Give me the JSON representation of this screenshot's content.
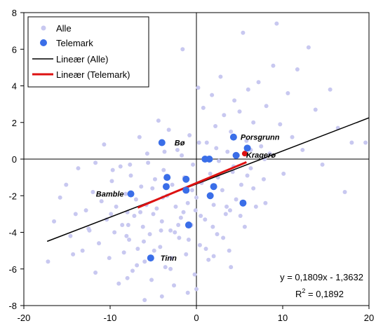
{
  "chart_data": {
    "type": "scatter",
    "xlim": [
      -20,
      20
    ],
    "ylim": [
      -8,
      8
    ],
    "x_ticks": [
      -20,
      -10,
      0,
      10,
      20
    ],
    "y_ticks": [
      -8,
      -6,
      -4,
      -2,
      0,
      2,
      4,
      6,
      8
    ],
    "x_tick_labels": [
      "-20",
      "-10",
      "0",
      "10",
      "20"
    ],
    "y_tick_labels": [
      "-8",
      "-6",
      "-4",
      "-2",
      "0",
      "2",
      "4",
      "6",
      "8"
    ],
    "grid": false,
    "legend_position": "top-left",
    "series": [
      {
        "name": "Alle",
        "color": "#c8c8f0",
        "points": [
          [
            -17.2,
            -5.6
          ],
          [
            -16.5,
            -3.4
          ],
          [
            -15.8,
            -2.1
          ],
          [
            -15.1,
            -1.4
          ],
          [
            -14.6,
            -4.2
          ],
          [
            -14.0,
            -3.0
          ],
          [
            -13.7,
            -0.5
          ],
          [
            -13.2,
            -5.0
          ],
          [
            -12.8,
            -2.8
          ],
          [
            -12.4,
            -3.9
          ],
          [
            -12.0,
            -1.8
          ],
          [
            -11.7,
            -6.2
          ],
          [
            -11.3,
            -4.6
          ],
          [
            -11.0,
            -2.3
          ],
          [
            -10.7,
            0.8
          ],
          [
            -10.4,
            -3.3
          ],
          [
            -10.1,
            -5.4
          ],
          [
            -9.8,
            -1.2
          ],
          [
            -9.5,
            -4.0
          ],
          [
            -9.3,
            -2.6
          ],
          [
            -9.0,
            -6.8
          ],
          [
            -8.8,
            -0.4
          ],
          [
            -8.6,
            -3.6
          ],
          [
            -8.4,
            -5.1
          ],
          [
            -8.2,
            -1.9
          ],
          [
            -8.0,
            -2.9
          ],
          [
            -7.8,
            -4.4
          ],
          [
            -7.6,
            -0.9
          ],
          [
            -7.4,
            -6.1
          ],
          [
            -7.2,
            -3.1
          ],
          [
            -7.0,
            -2.2
          ],
          [
            -6.8,
            -4.9
          ],
          [
            -6.6,
            1.2
          ],
          [
            -6.4,
            -1.5
          ],
          [
            -6.2,
            -3.7
          ],
          [
            -6.0,
            -5.6
          ],
          [
            -5.8,
            -2.5
          ],
          [
            -5.6,
            -0.2
          ],
          [
            -5.4,
            -4.1
          ],
          [
            -5.2,
            -6.6
          ],
          [
            -5.0,
            -3.0
          ],
          [
            -4.8,
            -1.1
          ],
          [
            -4.6,
            -2.7
          ],
          [
            -4.4,
            2.1
          ],
          [
            -4.2,
            -4.8
          ],
          [
            -4.0,
            -3.4
          ],
          [
            -3.8,
            -0.6
          ],
          [
            -3.6,
            -5.9
          ],
          [
            -3.4,
            -2.0
          ],
          [
            -3.2,
            1.6
          ],
          [
            -3.0,
            -3.9
          ],
          [
            -2.8,
            -1.4
          ],
          [
            -2.6,
            -6.9
          ],
          [
            -2.4,
            -2.6
          ],
          [
            -2.2,
            0.5
          ],
          [
            -2.0,
            -4.3
          ],
          [
            -1.8,
            -3.2
          ],
          [
            -1.6,
            6.0
          ],
          [
            -1.4,
            -1.0
          ],
          [
            -1.2,
            -5.2
          ],
          [
            -1.0,
            -2.4
          ],
          [
            -0.8,
            1.3
          ],
          [
            -0.6,
            -3.6
          ],
          [
            -0.4,
            -0.3
          ],
          [
            -0.2,
            -6.3
          ],
          [
            0.0,
            -2.1
          ],
          [
            0.2,
            3.9
          ],
          [
            0.4,
            -4.7
          ],
          [
            0.6,
            -1.3
          ],
          [
            0.8,
            2.8
          ],
          [
            1.0,
            -3.3
          ],
          [
            1.2,
            0.9
          ],
          [
            1.4,
            -5.5
          ],
          [
            1.6,
            -0.8
          ],
          [
            1.8,
            3.5
          ],
          [
            2.0,
            -2.5
          ],
          [
            2.2,
            1.8
          ],
          [
            2.4,
            -4.1
          ],
          [
            2.6,
            -0.1
          ],
          [
            2.8,
            4.5
          ],
          [
            3.0,
            -1.7
          ],
          [
            3.2,
            2.4
          ],
          [
            3.4,
            -3.0
          ],
          [
            3.6,
            0.4
          ],
          [
            3.8,
            -5.0
          ],
          [
            4.0,
            1.5
          ],
          [
            4.2,
            -0.7
          ],
          [
            4.4,
            3.2
          ],
          [
            4.6,
            -2.2
          ],
          [
            4.8,
            0.2
          ],
          [
            5.0,
            2.6
          ],
          [
            5.2,
            -1.4
          ],
          [
            5.4,
            6.9
          ],
          [
            5.6,
            -3.7
          ],
          [
            5.8,
            1.0
          ],
          [
            6.0,
            3.8
          ],
          [
            6.3,
            -0.5
          ],
          [
            6.6,
            2.0
          ],
          [
            6.9,
            -2.6
          ],
          [
            7.2,
            4.2
          ],
          [
            7.5,
            0.7
          ],
          [
            7.8,
            -1.1
          ],
          [
            8.1,
            2.9
          ],
          [
            8.5,
            0.3
          ],
          [
            8.9,
            5.1
          ],
          [
            9.3,
            7.4
          ],
          [
            9.7,
            1.9
          ],
          [
            10.1,
            -0.8
          ],
          [
            10.6,
            3.6
          ],
          [
            11.1,
            1.2
          ],
          [
            11.7,
            4.9
          ],
          [
            12.3,
            0.5
          ],
          [
            13.0,
            6.1
          ],
          [
            13.8,
            2.7
          ],
          [
            14.6,
            -0.3
          ],
          [
            15.5,
            3.8
          ],
          [
            16.4,
            1.7
          ],
          [
            17.2,
            -1.8
          ],
          [
            18.0,
            0.9
          ],
          [
            19.6,
            0.9
          ],
          [
            -6.5,
            -2.9
          ],
          [
            -5.1,
            -1.6
          ],
          [
            -3.9,
            -2.1
          ],
          [
            -2.5,
            -4.0
          ],
          [
            -1.5,
            -2.9
          ],
          [
            -0.5,
            -1.7
          ],
          [
            0.5,
            -3.1
          ],
          [
            1.5,
            -2.0
          ],
          [
            2.5,
            -1.0
          ],
          [
            3.5,
            -2.6
          ],
          [
            -7.9,
            -3.6
          ],
          [
            -6.9,
            -5.8
          ],
          [
            -4.9,
            -5.0
          ],
          [
            -2.9,
            -5.4
          ],
          [
            -0.9,
            -4.4
          ],
          [
            1.1,
            -4.9
          ],
          [
            3.1,
            -4.3
          ],
          [
            5.1,
            -3.1
          ],
          [
            6.6,
            -1.6
          ],
          [
            8.0,
            -2.4
          ],
          [
            -9.9,
            -3.0
          ],
          [
            -8.1,
            -4.2
          ],
          [
            -6.1,
            -4.5
          ],
          [
            -4.1,
            -3.9
          ],
          [
            -2.1,
            -3.6
          ],
          [
            -0.1,
            -2.8
          ],
          [
            1.9,
            -3.7
          ],
          [
            3.9,
            -2.8
          ],
          [
            5.9,
            -0.9
          ],
          [
            7.9,
            0.0
          ],
          [
            -3.7,
            0.4
          ],
          [
            -1.7,
            0.2
          ],
          [
            0.3,
            0.9
          ],
          [
            2.3,
            0.6
          ],
          [
            4.3,
            -0.4
          ],
          [
            6.3,
            0.5
          ],
          [
            -5.7,
            0.3
          ],
          [
            -7.7,
            -0.3
          ],
          [
            -9.7,
            -0.6
          ],
          [
            -11.7,
            -0.2
          ],
          [
            0.0,
            -7.1
          ],
          [
            -1.0,
            -7.3
          ],
          [
            -4.0,
            -7.5
          ],
          [
            -6.0,
            -7.7
          ],
          [
            -3.0,
            -6.0
          ],
          [
            -8.0,
            -6.5
          ],
          [
            2.0,
            -5.3
          ],
          [
            4.0,
            -5.9
          ],
          [
            -12.5,
            -3.8
          ],
          [
            -14.3,
            -5.2
          ]
        ]
      },
      {
        "name": "Telemark",
        "color": "#3a6ee8",
        "points": [
          [
            -4.0,
            0.9
          ],
          [
            -3.4,
            -1.0
          ],
          [
            -3.5,
            -1.5
          ],
          [
            -1.2,
            -1.1
          ],
          [
            -1.2,
            -1.7
          ],
          [
            -0.9,
            -3.6
          ],
          [
            -5.3,
            -5.4
          ],
          [
            -7.6,
            -1.9
          ],
          [
            1.0,
            0.0
          ],
          [
            1.5,
            0.0
          ],
          [
            2.0,
            -1.5
          ],
          [
            1.6,
            -2.0
          ],
          [
            4.3,
            1.2
          ],
          [
            4.6,
            0.2
          ],
          [
            5.6,
            0.3
          ],
          [
            5.9,
            0.6
          ],
          [
            5.4,
            -2.4
          ]
        ],
        "labels": [
          {
            "name": "Bø",
            "x": -4.0,
            "y": 0.9,
            "anchor": "start",
            "dx": 18,
            "dy": 4
          },
          {
            "name": "Porsgrunn",
            "x": 4.3,
            "y": 1.2,
            "anchor": "start",
            "dx": 10,
            "dy": 4
          },
          {
            "name": "Kragerø",
            "x": 5.6,
            "y": 0.3,
            "anchor": "start",
            "dx": 2,
            "dy": 6
          },
          {
            "name": "Bamble",
            "x": -7.6,
            "y": -1.9,
            "anchor": "end",
            "dx": -10,
            "dy": 4
          },
          {
            "name": "Tinn",
            "x": -5.3,
            "y": -5.4,
            "anchor": "start",
            "dx": 14,
            "dy": 4
          }
        ]
      }
    ],
    "trendlines": [
      {
        "name": "Lineær (Alle)",
        "color": "#000000",
        "x": [
          -17.3,
          20
        ],
        "slope": 0.1809,
        "intercept": -1.3632,
        "width": 1.5
      },
      {
        "name": "Lineær (Telemark)",
        "color": "#dd1111",
        "x": [
          -6.8,
          5.8
        ],
        "slope": 0.197,
        "intercept": -1.31,
        "width": 3
      }
    ],
    "equation": {
      "line1": "y = 0,1809x - 1,3632",
      "r2_prefix": "R",
      "r2_sup": "2",
      "r2_value": " = 0,1892"
    }
  }
}
